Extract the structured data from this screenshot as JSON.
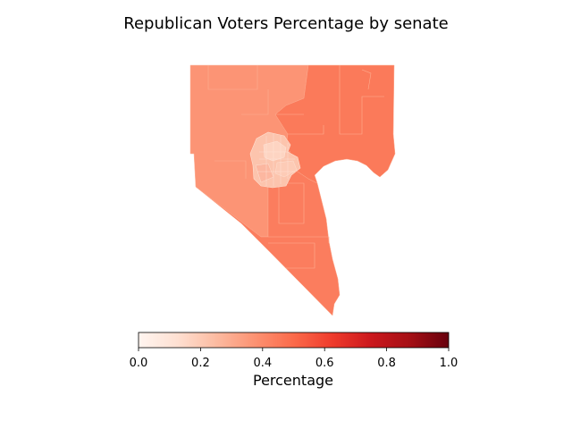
{
  "title": "Republican Voters Percentage by senate",
  "colorbar": {
    "label": "Percentage",
    "ticks": [
      "0.0",
      "0.2",
      "0.4",
      "0.6",
      "0.8",
      "1.0"
    ],
    "min": 0.0,
    "max": 1.0,
    "colormap": [
      "#fff5f0",
      "#fee0d2",
      "#fcbba1",
      "#fc9272",
      "#fb6a4a",
      "#ef3b2c",
      "#cb181d",
      "#a50f15",
      "#67000d"
    ]
  },
  "map": {
    "region_colors": {
      "west": "#fc9475",
      "east": "#fb7a5a",
      "south": "#fb7d5e",
      "urban_core": "#fcc4ad"
    }
  }
}
